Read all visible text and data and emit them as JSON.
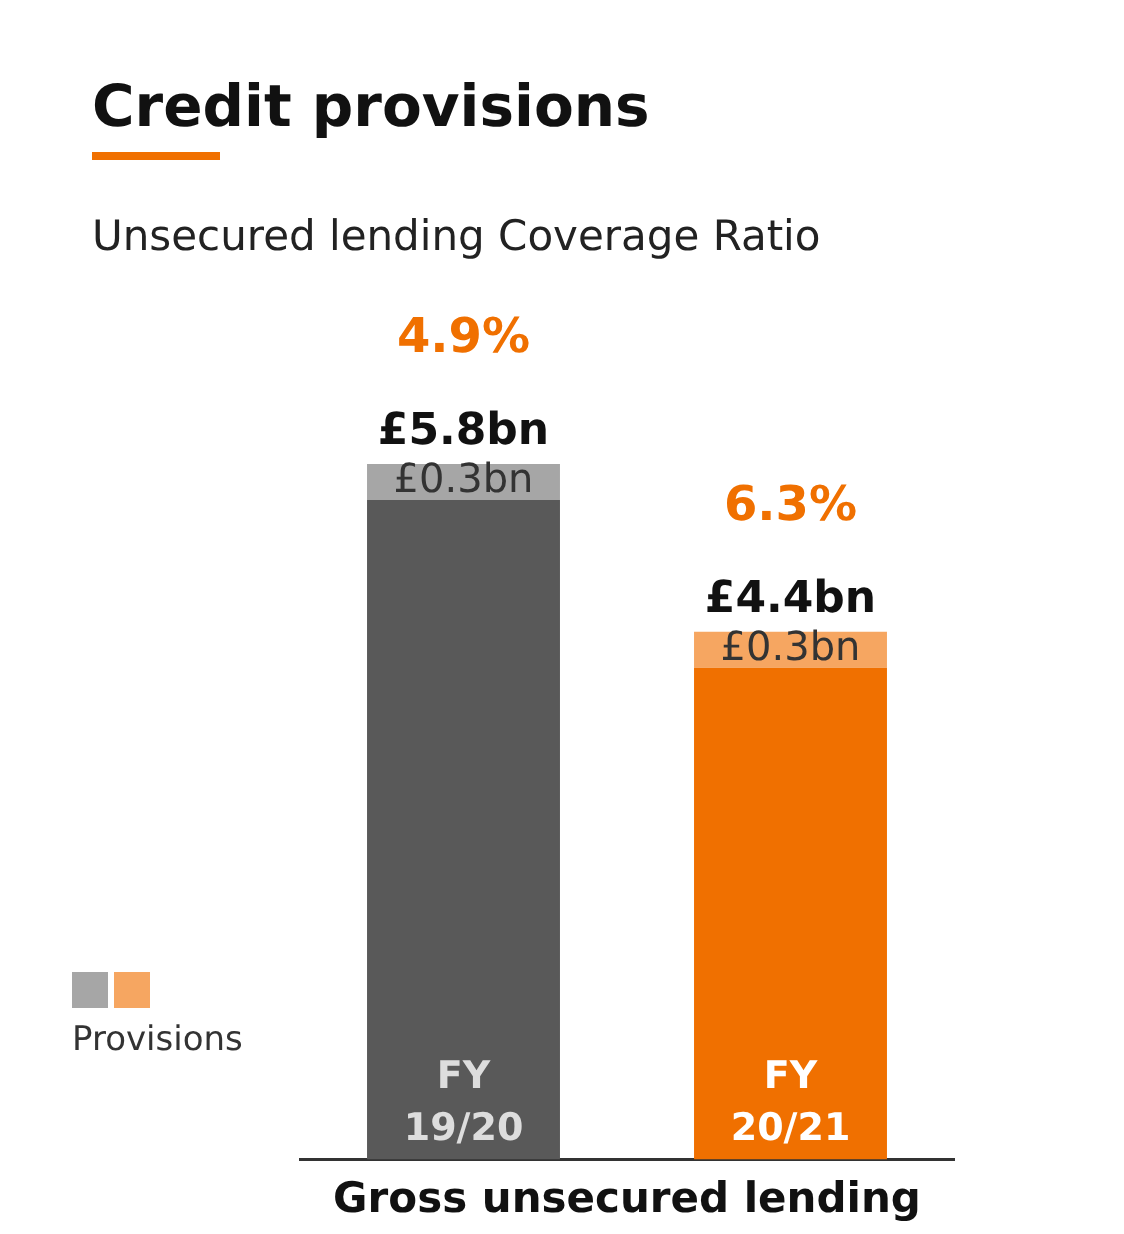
{
  "chart_data": {
    "type": "bar",
    "title": "Credit provisions",
    "subtitle": "Unsecured lending Coverage Ratio",
    "xlabel": "Gross unsecured lending",
    "categories": [
      "FY 19/20",
      "FY 20/21"
    ],
    "stacked": true,
    "series": [
      {
        "colors": [
          "#595959",
          "#f07000"
        ],
        "values": [
          5.5,
          4.1
        ]
      },
      {
        "name": "Provisions",
        "colors": [
          "#a6a6a6",
          "#f6a661"
        ],
        "values": [
          0.3,
          0.3
        ],
        "value_labels": [
          "£0.3bn",
          "£0.3bn"
        ]
      }
    ],
    "totals": [
      "£5.8bn",
      "£4.4bn"
    ],
    "annotations": [
      "4.9%",
      "6.3%"
    ],
    "legend": "left"
  }
}
